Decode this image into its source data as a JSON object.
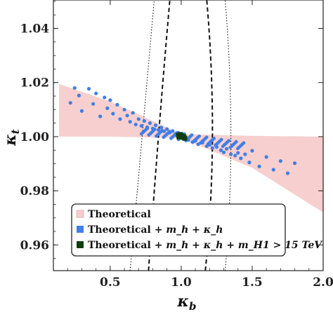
{
  "chart_data": {
    "type": "scatter",
    "xlabel": "κ",
    "xlabel_sub": "b",
    "ylabel": "κ",
    "ylabel_sub": "t",
    "xlim": [
      0.1,
      2.0
    ],
    "ylim": [
      0.9505,
      1.0505
    ],
    "xticks": [
      0.5,
      1.0,
      1.5,
      2.0
    ],
    "xtick_labels": [
      "0.5",
      "1.0",
      "1.5",
      "2.0"
    ],
    "yticks": [
      0.96,
      0.98,
      1.0,
      1.02,
      1.04
    ],
    "ytick_labels": [
      "0.96",
      "0.98",
      "1.00",
      "1.02",
      "1.04"
    ],
    "grid": false,
    "legend_position": "bottom-center",
    "series": [
      {
        "name": "Theoretical",
        "color": "#f7cccc",
        "marker": "square",
        "region_upper": [
          [
            0.14,
            1.0195
          ],
          [
            0.5,
            1.013
          ],
          [
            1.0,
            1.001
          ],
          [
            1.5,
            1.0003
          ],
          [
            2.0,
            1.0
          ]
        ],
        "region_lower": [
          [
            0.14,
            1.0
          ],
          [
            0.5,
            1.0
          ],
          [
            1.0,
            0.9995
          ],
          [
            1.5,
            0.9885
          ],
          [
            2.0,
            0.972
          ]
        ]
      },
      {
        "name": "Theoretical + m_h + κ_h",
        "color": "#3f7fe8",
        "marker": "circle",
        "points": [
          [
            0.22,
            1.0125
          ],
          [
            0.25,
            1.018
          ],
          [
            0.28,
            1.0152
          ],
          [
            0.3,
            1.0095
          ],
          [
            0.35,
            1.0177
          ],
          [
            0.38,
            1.0121
          ],
          [
            0.4,
            1.016
          ],
          [
            0.43,
            1.0075
          ],
          [
            0.46,
            1.0145
          ],
          [
            0.48,
            1.0105
          ],
          [
            0.5,
            1.0135
          ],
          [
            0.52,
            1.0085
          ],
          [
            0.55,
            1.0118
          ],
          [
            0.57,
            1.0065
          ],
          [
            0.6,
            1.01
          ],
          [
            0.62,
            1.0078
          ],
          [
            0.64,
            1.0055
          ],
          [
            0.66,
            1.0088
          ],
          [
            0.68,
            1.0045
          ],
          [
            0.7,
            1.0065
          ],
          [
            0.72,
            1.004
          ],
          [
            0.74,
            1.0058
          ],
          [
            0.76,
            1.0035
          ],
          [
            0.78,
            1.005
          ],
          [
            0.8,
            1.003
          ],
          [
            0.82,
            1.0042
          ],
          [
            0.84,
            1.0025
          ],
          [
            0.86,
            1.0034
          ],
          [
            0.88,
            1.002
          ],
          [
            0.9,
            1.0028
          ],
          [
            0.92,
            1.0015
          ],
          [
            0.94,
            1.0021
          ],
          [
            0.96,
            1.001
          ],
          [
            0.98,
            1.0014
          ],
          [
            1.02,
            0.9993
          ],
          [
            1.05,
            0.9988
          ],
          [
            1.08,
            0.998
          ],
          [
            1.1,
            0.9985
          ],
          [
            1.12,
            0.9972
          ],
          [
            1.15,
            0.9978
          ],
          [
            1.18,
            0.9965
          ],
          [
            1.2,
            0.997
          ],
          [
            1.22,
            0.9958
          ],
          [
            1.25,
            0.9962
          ],
          [
            1.28,
            0.995
          ],
          [
            1.3,
            0.9942
          ],
          [
            1.32,
            0.9955
          ],
          [
            1.35,
            0.9935
          ],
          [
            1.38,
            0.993
          ],
          [
            1.4,
            0.994
          ],
          [
            1.42,
            0.992
          ],
          [
            1.45,
            0.9935
          ],
          [
            1.48,
            0.9905
          ],
          [
            1.5,
            0.9948
          ],
          [
            1.55,
            0.989
          ],
          [
            1.6,
            0.9925
          ],
          [
            1.65,
            0.9878
          ],
          [
            1.7,
            0.991
          ],
          [
            1.75,
            0.9865
          ],
          [
            1.8,
            0.9902
          ]
        ]
      },
      {
        "name": "Theoretical + m_h + κ_h + m_H1 > 15 TeV",
        "color": "#0f3d0f",
        "marker": "square",
        "points": [
          [
            0.98,
            1.0006
          ],
          [
            0.99,
            1.0002
          ],
          [
            1.0,
            1.0
          ],
          [
            1.01,
            0.9998
          ],
          [
            1.02,
            0.9997
          ],
          [
            1.0,
            1.0004
          ],
          [
            0.985,
            0.9999
          ],
          [
            1.015,
            1.0001
          ],
          [
            1.025,
            0.9994
          ],
          [
            0.995,
            1.0008
          ]
        ]
      }
    ],
    "contours": [
      {
        "style": "dashed",
        "x_at_ylim_min": 0.77,
        "x_at_ylim_max": 0.92,
        "mid": [
          0.84,
          1.0
        ]
      },
      {
        "style": "dashed",
        "x_at_ylim_min": 1.17,
        "x_at_ylim_max": 1.18,
        "mid": [
          1.22,
          1.0
        ]
      },
      {
        "style": "dotted",
        "x_at_ylim_min": 0.64,
        "x_at_ylim_max": 0.81,
        "mid": [
          0.725,
          1.0
        ]
      },
      {
        "style": "dotted",
        "x_at_ylim_min": 1.31,
        "x_at_ylim_max": 1.31,
        "mid": [
          1.35,
          1.0
        ]
      }
    ]
  },
  "legend": {
    "entries": [
      {
        "prefix": "Theoretical",
        "math": ""
      },
      {
        "prefix": "Theoretical + ",
        "math": "m_h + κ_h"
      },
      {
        "prefix": "Theoretical + ",
        "math": "m_h + κ_h + m_H1 > 15 TeV"
      }
    ]
  }
}
